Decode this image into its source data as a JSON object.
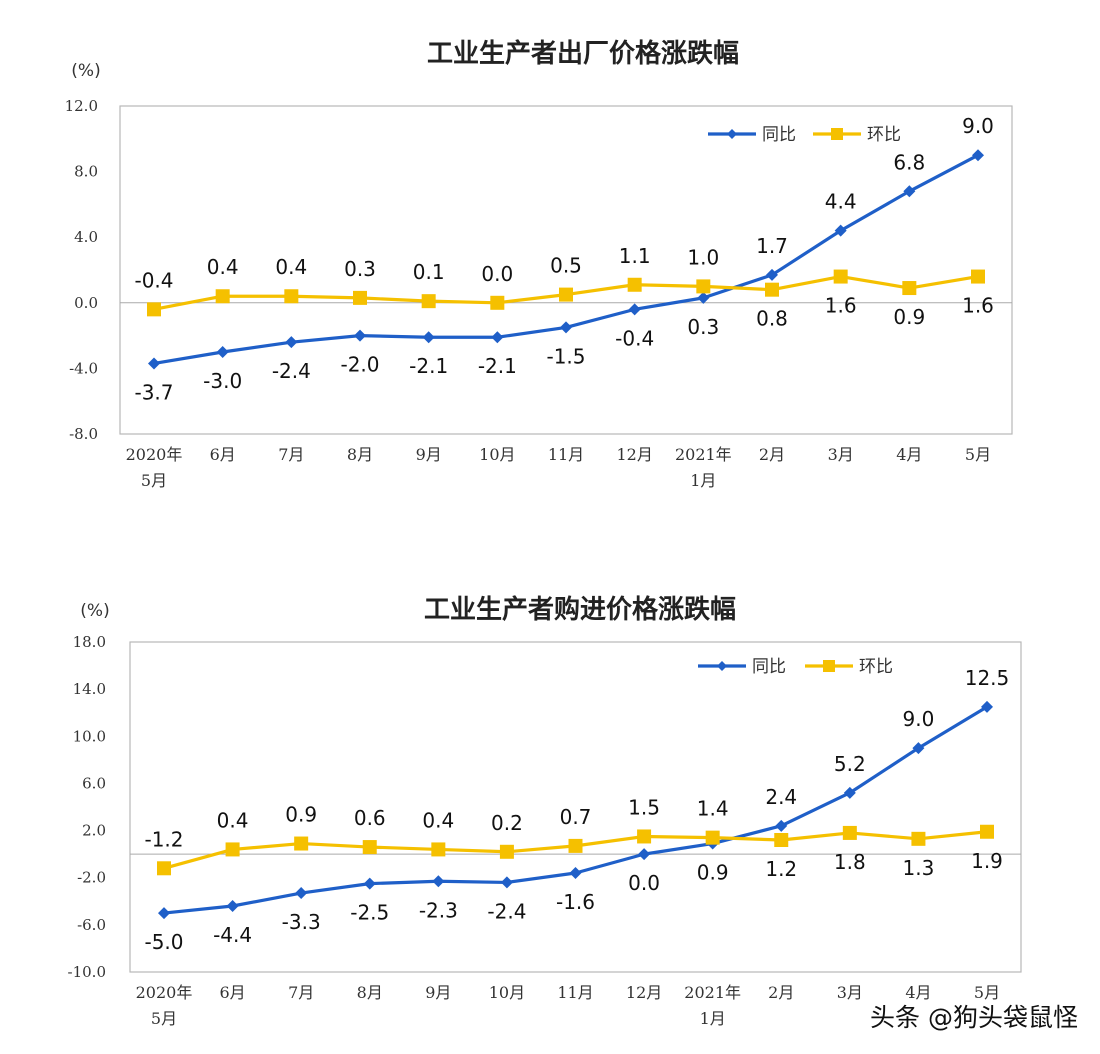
{
  "watermark": "头条 @狗头袋鼠怪",
  "chart_data": [
    {
      "type": "line",
      "title": "工业生产者出厂价格涨跌幅",
      "unit": "(%)",
      "categories": [
        [
          "2020年",
          "5月"
        ],
        [
          "6月"
        ],
        [
          "7月"
        ],
        [
          "8月"
        ],
        [
          "9月"
        ],
        [
          "10月"
        ],
        [
          "11月"
        ],
        [
          "12月"
        ],
        [
          "2021年",
          "1月"
        ],
        [
          "2月"
        ],
        [
          "3月"
        ],
        [
          "4月"
        ],
        [
          "5月"
        ]
      ],
      "yticks": [
        "12.0",
        "8.0",
        "4.0",
        "0.0",
        "-4.0",
        "-8.0"
      ],
      "ylim": [
        -8,
        12
      ],
      "legend_position": "top-right",
      "grid": false,
      "series": [
        {
          "name": "同比",
          "color": "#1f5fc8",
          "marker": "diamond",
          "values": [
            -3.7,
            -3.0,
            -2.4,
            -2.0,
            -2.1,
            -2.1,
            -1.5,
            -0.4,
            0.3,
            1.7,
            4.4,
            6.8,
            9.0
          ],
          "labels": [
            "-3.7",
            "-3.0",
            "-2.4",
            "-2.0",
            "-2.1",
            "-2.1",
            "-1.5",
            "-0.4",
            "0.3",
            "1.7",
            "4.4",
            "6.8",
            "9.0"
          ]
        },
        {
          "name": "环比",
          "color": "#f5c000",
          "marker": "square",
          "values": [
            -0.4,
            0.4,
            0.4,
            0.3,
            0.1,
            0.0,
            0.5,
            1.1,
            1.0,
            0.8,
            1.6,
            0.9,
            1.6
          ],
          "labels": [
            "-0.4",
            "0.4",
            "0.4",
            "0.3",
            "0.1",
            "0.0",
            "0.5",
            "1.1",
            "1.0",
            "0.8",
            "1.6",
            "0.9",
            "1.6"
          ]
        }
      ]
    },
    {
      "type": "line",
      "title": "工业生产者购进价格涨跌幅",
      "unit": "(%)",
      "categories": [
        [
          "2020年",
          "5月"
        ],
        [
          "6月"
        ],
        [
          "7月"
        ],
        [
          "8月"
        ],
        [
          "9月"
        ],
        [
          "10月"
        ],
        [
          "11月"
        ],
        [
          "12月"
        ],
        [
          "2021年",
          "1月"
        ],
        [
          "2月"
        ],
        [
          "3月"
        ],
        [
          "4月"
        ],
        [
          "5月"
        ]
      ],
      "yticks": [
        "18.0",
        "14.0",
        "10.0",
        "6.0",
        "2.0",
        "-2.0",
        "-6.0",
        "-10.0"
      ],
      "ylim": [
        -10,
        18
      ],
      "legend_position": "top-right",
      "grid": false,
      "series": [
        {
          "name": "同比",
          "color": "#1f5fc8",
          "marker": "diamond",
          "values": [
            -5.0,
            -4.4,
            -3.3,
            -2.5,
            -2.3,
            -2.4,
            -1.6,
            0.0,
            0.9,
            2.4,
            5.2,
            9.0,
            12.5
          ],
          "labels": [
            "-5.0",
            "-4.4",
            "-3.3",
            "-2.5",
            "-2.3",
            "-2.4",
            "-1.6",
            "0.0",
            "0.9",
            "2.4",
            "5.2",
            "9.0",
            "12.5"
          ]
        },
        {
          "name": "环比",
          "color": "#f5c000",
          "marker": "square",
          "values": [
            -1.2,
            0.4,
            0.9,
            0.6,
            0.4,
            0.2,
            0.7,
            1.5,
            1.4,
            1.2,
            1.8,
            1.3,
            1.9
          ],
          "labels": [
            "-1.2",
            "0.4",
            "0.9",
            "0.6",
            "0.4",
            "0.2",
            "0.7",
            "1.5",
            "1.4",
            "1.2",
            "1.8",
            "1.3",
            "1.9"
          ]
        }
      ]
    }
  ]
}
